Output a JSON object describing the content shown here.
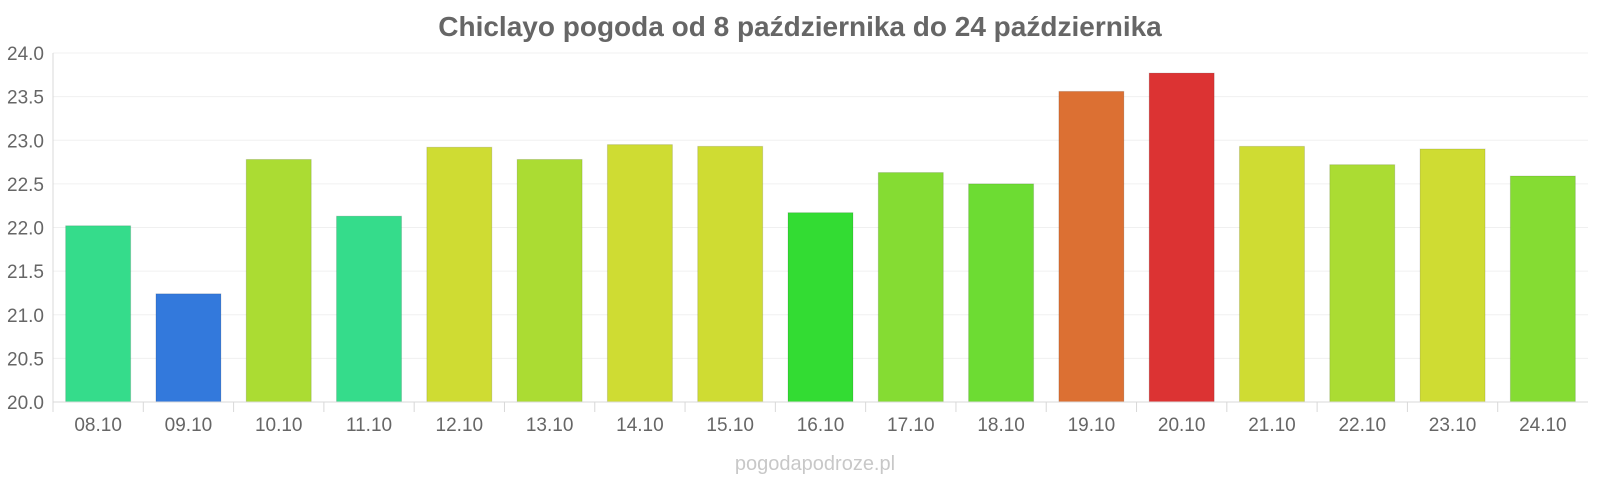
{
  "chart_data": {
    "type": "bar",
    "title": "Chiclayo pogoda od 8 października do 24 października",
    "xlabel": "",
    "ylabel": "",
    "categories": [
      "08.10",
      "09.10",
      "10.10",
      "11.10",
      "12.10",
      "13.10",
      "14.10",
      "15.10",
      "16.10",
      "17.10",
      "18.10",
      "19.10",
      "20.10",
      "21.10",
      "22.10",
      "23.10",
      "24.10"
    ],
    "values": [
      22.02,
      21.24,
      22.78,
      22.13,
      22.92,
      22.78,
      22.95,
      22.93,
      22.17,
      22.63,
      22.5,
      23.56,
      23.77,
      22.93,
      22.72,
      22.9,
      22.59
    ],
    "colors": [
      "#35dc8b",
      "#3379dc",
      "#abdc33",
      "#35dc8b",
      "#cfdc33",
      "#abdc33",
      "#cfdc33",
      "#cfdc33",
      "#33dc33",
      "#85dc33",
      "#6ddc33",
      "#dc7033",
      "#dc3333",
      "#cfdc33",
      "#abdc33",
      "#cfdc33",
      "#85dc33"
    ],
    "ylim": [
      20.0,
      24.0
    ],
    "yticks": [
      "20.0",
      "20.5",
      "21.0",
      "21.5",
      "22.0",
      "22.5",
      "23.0",
      "23.5",
      "24.0"
    ],
    "grid": true,
    "legend": "none"
  },
  "watermark": "pogodapodroze.pl"
}
